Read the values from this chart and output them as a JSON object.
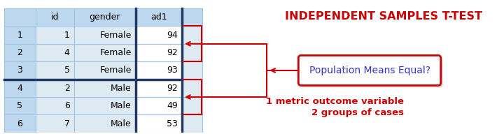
{
  "title": "INDEPENDENT SAMPLES T-TEST",
  "title_color": "#CC0000",
  "subtitle1": "1 metric outcome variable",
  "subtitle2": "2 groups of cases",
  "subtitle_color": "#CC0000",
  "box_label": "Population Means Equal?",
  "box_text_color": "#3333CC",
  "box_border_color": "#CC0000",
  "header": [
    "",
    "id",
    "gender",
    "ad1"
  ],
  "rows": [
    [
      "1",
      "1",
      "Female",
      "94"
    ],
    [
      "2",
      "4",
      "Female",
      "92"
    ],
    [
      "3",
      "5",
      "Female",
      "93"
    ],
    [
      "4",
      "2",
      "Male",
      "92"
    ],
    [
      "5",
      "6",
      "Male",
      "49"
    ],
    [
      "6",
      "7",
      "Male",
      "53"
    ]
  ],
  "table_bg_header": "#BDD7EE",
  "table_bg_row": "#DEEAF1",
  "table_bg_index": "#BDD7EE",
  "table_bg_ad1": "#FFFFFF",
  "table_border_light": "#9DC3E6",
  "table_border_dark": "#1F3864",
  "arrow_color": "#CC0000",
  "figsize": [
    7.2,
    1.92
  ],
  "dpi": 100
}
